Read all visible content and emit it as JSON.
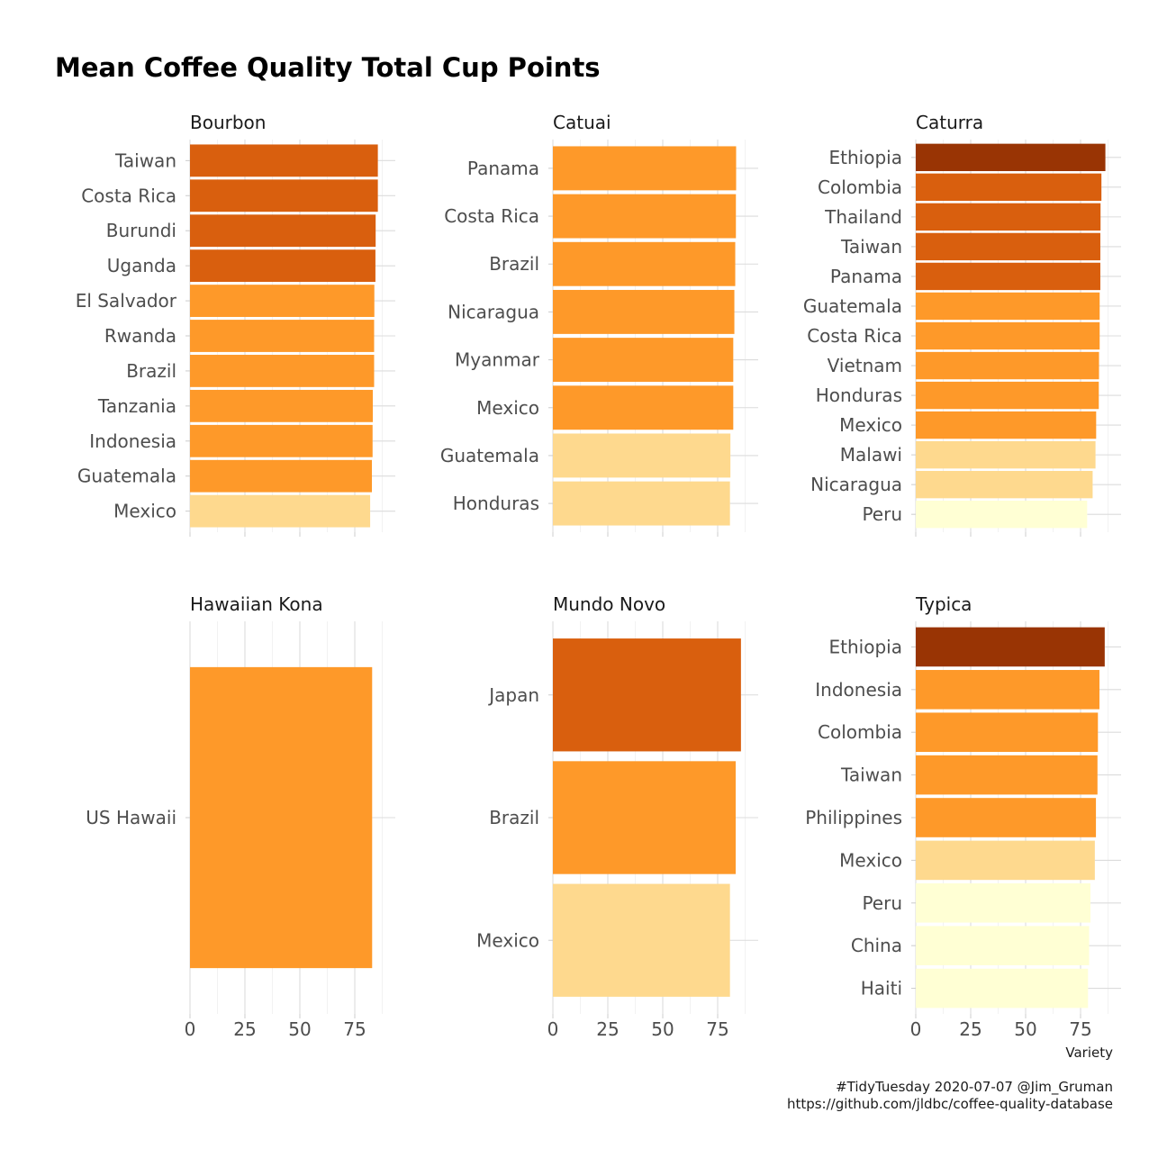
{
  "chart_data": {
    "type": "bar",
    "orientation": "horizontal",
    "title": "Mean Coffee Quality Total Cup Points",
    "xlabel": "Variety",
    "xlim": [
      0,
      88
    ],
    "xticks": [
      0,
      25,
      50,
      75
    ],
    "grid": true,
    "colors": {
      "dark": "#993404",
      "orange_dark": "#d95f0e",
      "orange": "#fe9929",
      "light": "#fed98e",
      "pale": "#ffffd4"
    },
    "facets": [
      {
        "name": "Bourbon",
        "categories": [
          "Taiwan",
          "Costa Rica",
          "Burundi",
          "Uganda",
          "El Salvador",
          "Rwanda",
          "Brazil",
          "Tanzania",
          "Indonesia",
          "Guatemala",
          "Mexico"
        ],
        "values": [
          85.5,
          85.5,
          84.5,
          84.4,
          83.9,
          83.8,
          83.8,
          83.2,
          83.1,
          82.8,
          82.0
        ],
        "color_class": [
          "orange_dark",
          "orange_dark",
          "orange_dark",
          "orange_dark",
          "orange",
          "orange",
          "orange",
          "orange",
          "orange",
          "orange",
          "light"
        ]
      },
      {
        "name": "Catuai",
        "categories": [
          "Panama",
          "Costa Rica",
          "Brazil",
          "Nicaragua",
          "Myanmar",
          "Mexico",
          "Guatemala",
          "Honduras"
        ],
        "values": [
          83.4,
          83.3,
          83.0,
          82.6,
          82.1,
          82.1,
          80.8,
          80.6
        ],
        "color_class": [
          "orange",
          "orange",
          "orange",
          "orange",
          "orange",
          "orange",
          "light",
          "light"
        ]
      },
      {
        "name": "Caturra",
        "categories": [
          "Ethiopia",
          "Colombia",
          "Thailand",
          "Taiwan",
          "Panama",
          "Guatemala",
          "Costa Rica",
          "Vietnam",
          "Honduras",
          "Mexico",
          "Malawi",
          "Nicaragua",
          "Peru"
        ],
        "values": [
          86.3,
          84.5,
          84.1,
          84.0,
          84.0,
          83.7,
          83.7,
          83.4,
          83.3,
          82.1,
          81.8,
          80.5,
          78.0
        ],
        "color_class": [
          "dark",
          "orange_dark",
          "orange_dark",
          "orange_dark",
          "orange_dark",
          "orange",
          "orange",
          "orange",
          "orange",
          "orange",
          "light",
          "light",
          "pale"
        ]
      },
      {
        "name": "Hawaiian Kona",
        "categories": [
          "US Hawaii"
        ],
        "values": [
          82.9
        ],
        "color_class": [
          "orange"
        ]
      },
      {
        "name": "Mundo Novo",
        "categories": [
          "Japan",
          "Brazil",
          "Mexico"
        ],
        "values": [
          85.6,
          83.2,
          80.6
        ],
        "color_class": [
          "orange_dark",
          "orange",
          "light"
        ]
      },
      {
        "name": "Typica",
        "categories": [
          "Ethiopia",
          "Indonesia",
          "Colombia",
          "Taiwan",
          "Philippines",
          "Mexico",
          "Peru",
          "China",
          "Haiti"
        ],
        "values": [
          86.0,
          83.6,
          82.9,
          82.7,
          82.0,
          81.5,
          79.5,
          78.9,
          78.4
        ],
        "color_class": [
          "dark",
          "orange",
          "orange",
          "orange",
          "orange",
          "light",
          "pale",
          "pale",
          "pale"
        ]
      }
    ]
  },
  "caption": {
    "line1": "#TidyTuesday 2020-07-07 @Jim_Gruman",
    "line2": "https://github.com/jldbc/coffee-quality-database"
  }
}
